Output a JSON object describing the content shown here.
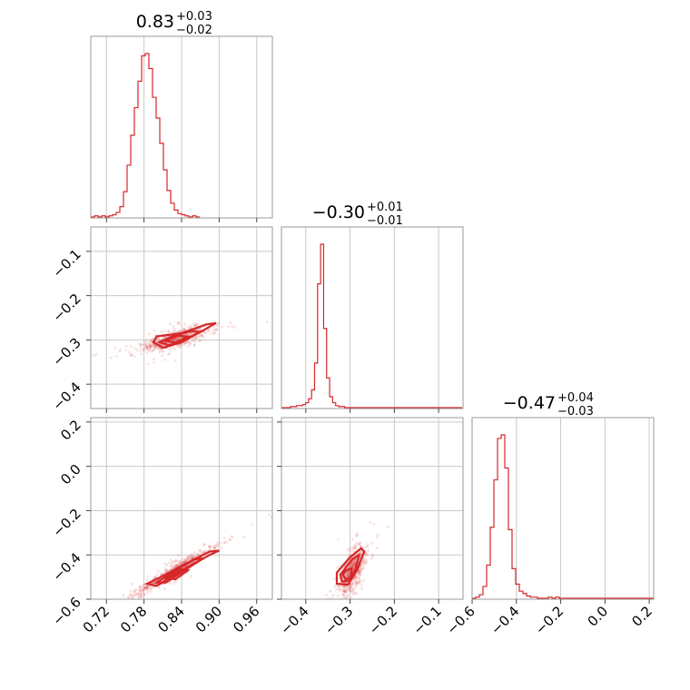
{
  "colors": {
    "accent": "#d62728",
    "scatter": "#e06666",
    "grid": "#c8c8c8",
    "frame": "#999999"
  },
  "chart_data": {
    "type": "corner",
    "parameters": [
      {
        "id": "p0",
        "range": [
          0.695,
          0.985
        ],
        "ticks": [
          0.72,
          0.78,
          0.84,
          0.9,
          0.96
        ],
        "tick_labels": [
          "0.72",
          "0.78",
          "0.84",
          "0.90",
          "0.96"
        ],
        "title": {
          "median": "0.83",
          "plus": "+0.03",
          "minus": "−0.02"
        }
      },
      {
        "id": "p1",
        "range": [
          -0.455,
          -0.045
        ],
        "ticks": [
          -0.4,
          -0.3,
          -0.2,
          -0.1
        ],
        "tick_labels": [
          "−0.4",
          "−0.3",
          "−0.2",
          "−0.1"
        ],
        "title": {
          "median": "−0.30",
          "plus": "+0.01",
          "minus": "−0.01"
        }
      },
      {
        "id": "p2",
        "range": [
          -0.6,
          0.22
        ],
        "ticks": [
          -0.6,
          -0.4,
          -0.2,
          0.0,
          0.2
        ],
        "tick_labels": [
          "−0.6",
          "−0.4",
          "−0.2",
          "0.0",
          "0.2"
        ],
        "title": {
          "median": "−0.47",
          "plus": "+0.04",
          "minus": "−0.03"
        }
      }
    ],
    "histograms": [
      {
        "param": 0,
        "edges_start": 0.695,
        "bin_width": 0.0058,
        "counts": [
          0,
          1,
          0,
          1,
          0,
          1,
          2,
          4,
          9,
          22,
          45,
          71,
          95,
          118,
          140,
          142,
          129,
          104,
          86,
          64,
          41,
          23,
          12,
          6,
          3,
          2,
          1,
          0,
          1,
          0
        ]
      },
      {
        "param": 1,
        "edges_start": -0.455,
        "bin_width": 0.0068,
        "counts": [
          0,
          0,
          0,
          1,
          1,
          2,
          2,
          3,
          5,
          9,
          18,
          45,
          125,
          165,
          80,
          30,
          11,
          5,
          2,
          1,
          1,
          0,
          0,
          0,
          0,
          0,
          0,
          0,
          0,
          0,
          0,
          0,
          0,
          0,
          0,
          0,
          0,
          0,
          0,
          0,
          0,
          0,
          0,
          0,
          0,
          0,
          0,
          0,
          0,
          0,
          0,
          0,
          0,
          0,
          0,
          0,
          0,
          0,
          0,
          0
        ]
      },
      {
        "param": 2,
        "edges_start": -0.6,
        "bin_width": 0.0164,
        "counts": [
          0,
          1,
          3,
          10,
          28,
          60,
          100,
          135,
          138,
          110,
          58,
          25,
          12,
          6,
          4,
          2,
          1,
          1,
          0,
          0,
          0,
          1,
          0,
          1,
          0,
          0,
          0,
          0,
          0,
          0,
          0,
          0,
          0,
          0,
          0,
          0,
          0,
          0,
          0,
          0,
          0,
          0,
          0,
          0,
          0,
          0,
          0,
          0,
          0,
          0,
          0
        ]
      }
    ],
    "pairs": [
      {
        "x": 0,
        "y": 1,
        "center": [
          0.83,
          -0.298
        ],
        "slope": 0.35,
        "spread": [
          0.022,
          0.008
        ],
        "contours": [
          [
            [
              0.795,
              -0.305
            ],
            [
              0.81,
              -0.318
            ],
            [
              0.84,
              -0.305
            ],
            [
              0.875,
              -0.278
            ],
            [
              0.895,
              -0.262
            ],
            [
              0.88,
              -0.265
            ],
            [
              0.84,
              -0.285
            ],
            [
              0.8,
              -0.292
            ],
            [
              0.795,
              -0.305
            ]
          ],
          [
            [
              0.805,
              -0.305
            ],
            [
              0.82,
              -0.312
            ],
            [
              0.845,
              -0.3
            ],
            [
              0.87,
              -0.282
            ],
            [
              0.855,
              -0.28
            ],
            [
              0.825,
              -0.292
            ],
            [
              0.805,
              -0.305
            ]
          ],
          [
            [
              0.815,
              -0.302
            ],
            [
              0.83,
              -0.306
            ],
            [
              0.85,
              -0.293
            ],
            [
              0.835,
              -0.29
            ],
            [
              0.815,
              -0.302
            ]
          ]
        ]
      },
      {
        "x": 0,
        "y": 2,
        "center": [
          0.83,
          -0.47
        ],
        "slope": 1.65,
        "spread": [
          0.028,
          0.012
        ],
        "contours": [
          [
            [
              0.785,
              -0.53
            ],
            [
              0.8,
              -0.54
            ],
            [
              0.84,
              -0.47
            ],
            [
              0.885,
              -0.4
            ],
            [
              0.9,
              -0.38
            ],
            [
              0.885,
              -0.385
            ],
            [
              0.84,
              -0.45
            ],
            [
              0.8,
              -0.51
            ],
            [
              0.785,
              -0.53
            ]
          ],
          [
            [
              0.8,
              -0.525
            ],
            [
              0.815,
              -0.525
            ],
            [
              0.85,
              -0.46
            ],
            [
              0.875,
              -0.415
            ],
            [
              0.86,
              -0.42
            ],
            [
              0.825,
              -0.48
            ],
            [
              0.8,
              -0.525
            ]
          ],
          [
            [
              0.815,
              -0.505
            ],
            [
              0.83,
              -0.51
            ],
            [
              0.85,
              -0.47
            ],
            [
              0.84,
              -0.465
            ],
            [
              0.815,
              -0.505
            ]
          ]
        ]
      },
      {
        "x": 1,
        "y": 2,
        "center": [
          -0.295,
          -0.47
        ],
        "slope": 2.2,
        "spread": [
          0.012,
          0.035
        ],
        "contours": [
          [
            [
              -0.33,
              -0.48
            ],
            [
              -0.33,
              -0.53
            ],
            [
              -0.305,
              -0.535
            ],
            [
              -0.285,
              -0.47
            ],
            [
              -0.268,
              -0.385
            ],
            [
              -0.275,
              -0.37
            ],
            [
              -0.3,
              -0.41
            ],
            [
              -0.33,
              -0.48
            ]
          ],
          [
            [
              -0.322,
              -0.49
            ],
            [
              -0.318,
              -0.52
            ],
            [
              -0.3,
              -0.515
            ],
            [
              -0.287,
              -0.46
            ],
            [
              -0.28,
              -0.4
            ],
            [
              -0.295,
              -0.42
            ],
            [
              -0.322,
              -0.49
            ]
          ],
          [
            [
              -0.316,
              -0.49
            ],
            [
              -0.31,
              -0.51
            ],
            [
              -0.298,
              -0.5
            ],
            [
              -0.296,
              -0.46
            ],
            [
              -0.31,
              -0.47
            ],
            [
              -0.316,
              -0.49
            ]
          ]
        ]
      }
    ],
    "grid": true
  }
}
